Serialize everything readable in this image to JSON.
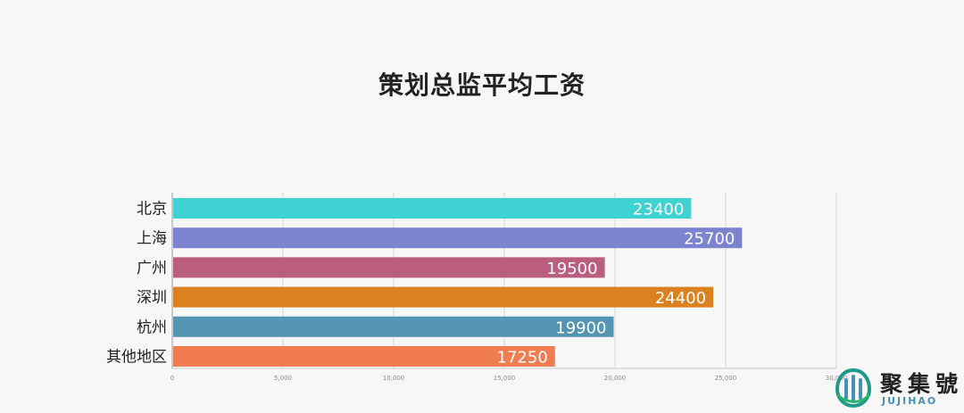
{
  "chart_data": {
    "type": "bar",
    "orientation": "horizontal",
    "title": "策划总监平均工资",
    "xlabel": "",
    "ylabel": "",
    "xlim": [
      0,
      30000
    ],
    "x_ticks": [
      "0",
      "5,000",
      "10,000",
      "15,000",
      "20,000",
      "25,000",
      "30,000"
    ],
    "grid": true,
    "categories": [
      "北京",
      "上海",
      "广州",
      "深圳",
      "杭州",
      "其他地区"
    ],
    "values": [
      23400,
      25700,
      19500,
      24400,
      19900,
      17250
    ],
    "data_labels": [
      "23400",
      "25700",
      "19500",
      "24400",
      "19900",
      "17250"
    ],
    "colors": [
      "#3ed3d2",
      "#7c83cf",
      "#bb5d7e",
      "#dc8120",
      "#5595b4",
      "#f07c50"
    ]
  },
  "logo": {
    "text_cn": "聚集號",
    "text_en": "JUJIHAO",
    "color": "#4a8fb4"
  }
}
